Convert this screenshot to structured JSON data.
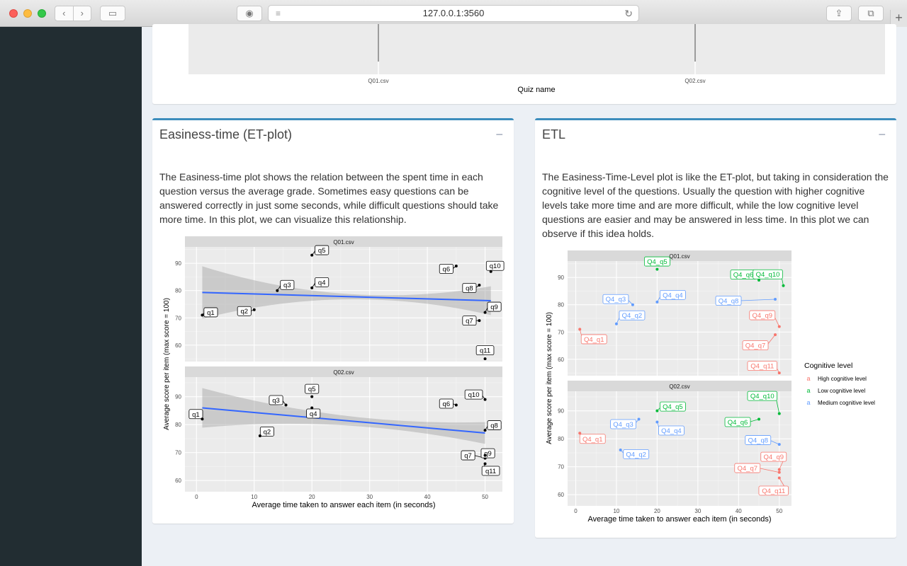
{
  "browser": {
    "url": "127.0.0.1:3560"
  },
  "top_box": {
    "x_labels": [
      "Q01.csv",
      "Q02.csv"
    ],
    "x_title": "Quiz name"
  },
  "et_box": {
    "title": "Easiness-time (ET-plot)",
    "collapse": "−",
    "description": "The Easiness-time plot shows the relation between the spent time in each question versus the average grade. Sometimes easy questions can be answered correctly in just some seconds, while difficult questions should take more time. In this plot, we can visualize this relationship."
  },
  "etl_box": {
    "title": "ETL",
    "collapse": "−",
    "description": "The Easiness-Time-Level plot is like the ET-plot, but taking in consideration the cognitive level of the questions. Usually the question with higher cognitive levels take more time and are more difficult, while the low cognitive level questions are easier and may be answered in less time. In this plot we can observe if this idea holds."
  },
  "chart_data": [
    {
      "type": "scatter",
      "chart": "et",
      "xlabel": "Average time taken to answer each item (in seconds)",
      "ylabel": "Average score per item (max score = 100)",
      "xlim": [
        -2,
        53
      ],
      "xticks": [
        0,
        10,
        20,
        30,
        40,
        50
      ],
      "yticks": [
        60,
        70,
        80,
        90
      ],
      "grid": true,
      "panels": [
        {
          "name": "Q01.csv",
          "ylim": [
            54,
            96
          ],
          "trend": [
            {
              "x": 1,
              "y": 79.3
            },
            {
              "x": 51,
              "y": 76.3
            }
          ],
          "points": [
            {
              "label": "q1",
              "x": 1,
              "y": 71
            },
            {
              "label": "q2",
              "x": 10,
              "y": 73
            },
            {
              "label": "q3",
              "x": 14,
              "y": 80
            },
            {
              "label": "q4",
              "x": 20,
              "y": 81
            },
            {
              "label": "q5",
              "x": 20,
              "y": 93
            },
            {
              "label": "q6",
              "x": 45,
              "y": 89
            },
            {
              "label": "q7",
              "x": 49,
              "y": 69
            },
            {
              "label": "q8",
              "x": 49,
              "y": 82
            },
            {
              "label": "q9",
              "x": 50,
              "y": 72
            },
            {
              "label": "q10",
              "x": 51,
              "y": 87
            },
            {
              "label": "q11",
              "x": 50,
              "y": 55
            }
          ]
        },
        {
          "name": "Q02.csv",
          "ylim": [
            56,
            97
          ],
          "trend": [
            {
              "x": 1,
              "y": 86
            },
            {
              "x": 50,
              "y": 77
            }
          ],
          "points": [
            {
              "label": "q1",
              "x": 1,
              "y": 82
            },
            {
              "label": "q2",
              "x": 11,
              "y": 76
            },
            {
              "label": "q3",
              "x": 15.5,
              "y": 87
            },
            {
              "label": "q4",
              "x": 20,
              "y": 86
            },
            {
              "label": "q5",
              "x": 20,
              "y": 90
            },
            {
              "label": "q6",
              "x": 45,
              "y": 87
            },
            {
              "label": "q7",
              "x": 50,
              "y": 68
            },
            {
              "label": "q8",
              "x": 50,
              "y": 78
            },
            {
              "label": "q9",
              "x": 50,
              "y": 69
            },
            {
              "label": "q10",
              "x": 50,
              "y": 89
            },
            {
              "label": "q11",
              "x": 50,
              "y": 66
            }
          ]
        }
      ]
    },
    {
      "type": "scatter",
      "chart": "etl",
      "xlabel": "Average time taken to answer each item (in seconds)",
      "ylabel": "Average score per item (max score = 100)",
      "xlim": [
        -2,
        53
      ],
      "xticks": [
        0,
        10,
        20,
        30,
        40,
        50
      ],
      "yticks": [
        60,
        70,
        80,
        90
      ],
      "grid": true,
      "legend_position": "right",
      "legend": {
        "title": "Cognitive level",
        "glyph": "a",
        "items": [
          {
            "name": "High cognitive level",
            "color": "#f8766d"
          },
          {
            "name": "Low cognitive level",
            "color": "#00ba38"
          },
          {
            "name": "Medium cognitive level",
            "color": "#619cff"
          }
        ]
      },
      "panels": [
        {
          "name": "Q01.csv",
          "ylim": [
            54,
            96
          ],
          "points": [
            {
              "label": "Q4_q1",
              "x": 1,
              "y": 71,
              "level": "High cognitive level"
            },
            {
              "label": "Q4_q2",
              "x": 10,
              "y": 73,
              "level": "Medium cognitive level"
            },
            {
              "label": "Q4_q3",
              "x": 14,
              "y": 80,
              "level": "Medium cognitive level"
            },
            {
              "label": "Q4_q4",
              "x": 20,
              "y": 81,
              "level": "Medium cognitive level"
            },
            {
              "label": "Q4_q5",
              "x": 20,
              "y": 93,
              "level": "Low cognitive level"
            },
            {
              "label": "Q4_q6",
              "x": 45,
              "y": 89,
              "level": "Low cognitive level"
            },
            {
              "label": "Q4_q7",
              "x": 49,
              "y": 69,
              "level": "High cognitive level"
            },
            {
              "label": "Q4_q8",
              "x": 49,
              "y": 82,
              "level": "Medium cognitive level"
            },
            {
              "label": "Q4_q9",
              "x": 50,
              "y": 72,
              "level": "High cognitive level"
            },
            {
              "label": "Q4_q10",
              "x": 51,
              "y": 87,
              "level": "Low cognitive level"
            },
            {
              "label": "Q4_q11",
              "x": 50,
              "y": 55,
              "level": "High cognitive level"
            }
          ]
        },
        {
          "name": "Q02.csv",
          "ylim": [
            56,
            97
          ],
          "points": [
            {
              "label": "Q4_q1",
              "x": 1,
              "y": 82,
              "level": "High cognitive level"
            },
            {
              "label": "Q4_q2",
              "x": 11,
              "y": 76,
              "level": "Medium cognitive level"
            },
            {
              "label": "Q4_q3",
              "x": 15.5,
              "y": 87,
              "level": "Medium cognitive level"
            },
            {
              "label": "Q4_q4",
              "x": 20,
              "y": 86,
              "level": "Medium cognitive level"
            },
            {
              "label": "Q4_q5",
              "x": 20,
              "y": 90,
              "level": "Low cognitive level"
            },
            {
              "label": "Q4_q6",
              "x": 45,
              "y": 87,
              "level": "Low cognitive level"
            },
            {
              "label": "Q4_q7",
              "x": 50,
              "y": 68,
              "level": "High cognitive level"
            },
            {
              "label": "Q4_q8",
              "x": 50,
              "y": 78,
              "level": "Medium cognitive level"
            },
            {
              "label": "Q4_q9",
              "x": 50,
              "y": 69,
              "level": "High cognitive level"
            },
            {
              "label": "Q4_q10",
              "x": 50,
              "y": 89,
              "level": "Low cognitive level"
            },
            {
              "label": "Q4_q11",
              "x": 50,
              "y": 66,
              "level": "High cognitive level"
            }
          ]
        }
      ]
    }
  ]
}
